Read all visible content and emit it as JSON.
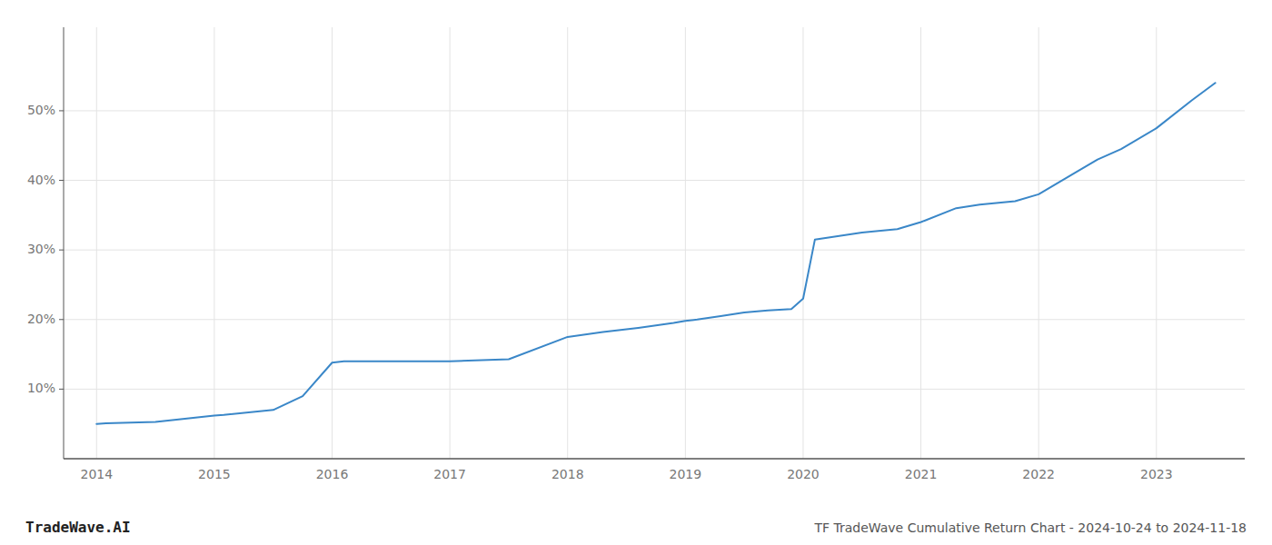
{
  "chart_data": {
    "type": "line",
    "title": "TF TradeWave Cumulative Return Chart - 2024-10-24 to 2024-11-18",
    "annotations": [
      "TradeWave.AI"
    ],
    "x": [
      2014.0,
      2014.08,
      2014.5,
      2015.0,
      2015.08,
      2015.5,
      2015.75,
      2016.0,
      2016.05,
      2016.1,
      2016.5,
      2017.0,
      2017.5,
      2018.0,
      2018.3,
      2018.6,
      2018.9,
      2019.0,
      2019.1,
      2019.3,
      2019.5,
      2019.7,
      2019.9,
      2020.0,
      2020.1,
      2020.5,
      2020.8,
      2021.0,
      2021.3,
      2021.5,
      2021.8,
      2022.0,
      2022.3,
      2022.5,
      2022.7,
      2023.0,
      2023.3,
      2023.5
    ],
    "values": [
      5.0,
      5.1,
      5.3,
      6.2,
      6.3,
      7.0,
      9.0,
      13.8,
      13.9,
      14.0,
      14.0,
      14.0,
      14.3,
      17.5,
      18.2,
      18.8,
      19.5,
      19.8,
      20.0,
      20.5,
      21.0,
      21.3,
      21.5,
      23.0,
      31.5,
      32.5,
      33.0,
      34.0,
      36.0,
      36.5,
      37.0,
      38.0,
      41.0,
      43.0,
      44.5,
      47.5,
      51.5,
      54.0
    ],
    "color": "#3a87c8",
    "xlim": [
      2013.72,
      2023.75
    ],
    "ylim": [
      0,
      62
    ],
    "xticks": [
      2014,
      2015,
      2016,
      2017,
      2018,
      2019,
      2020,
      2021,
      2022,
      2023
    ],
    "yticks": [
      {
        "value": 10,
        "label": "10%"
      },
      {
        "value": 20,
        "label": "20%"
      },
      {
        "value": 30,
        "label": "30%"
      },
      {
        "value": 40,
        "label": "40%"
      },
      {
        "value": 50,
        "label": "50%"
      }
    ],
    "grid": true
  }
}
